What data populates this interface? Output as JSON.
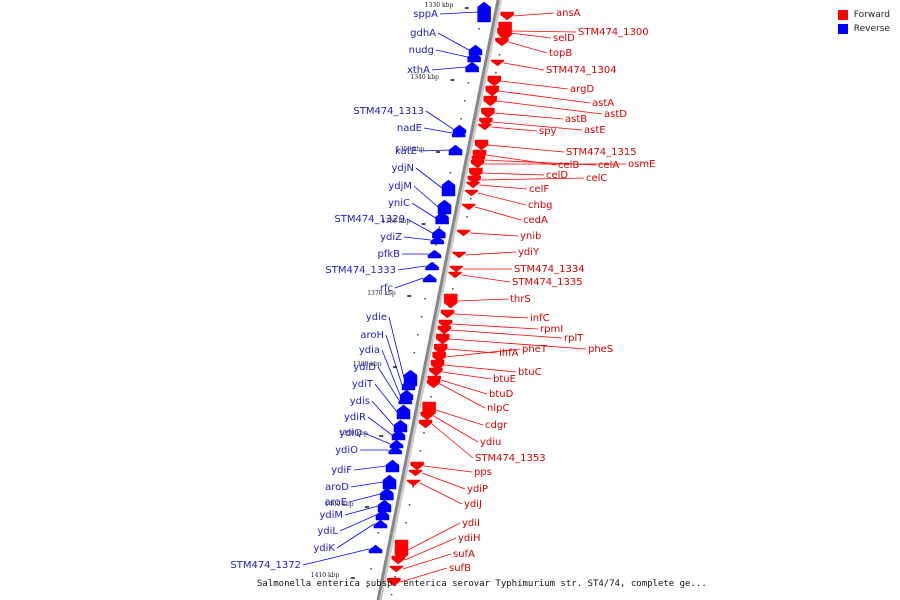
{
  "title": "Salmonella enterica subsp. enterica serovar Typhimurium str. ST4/74, complete ge...",
  "legend": [
    {
      "label": "Forward",
      "color": "#ff0000"
    },
    {
      "label": "Reverse",
      "color": "#0000ff"
    }
  ],
  "colors": {
    "forward": "#ff0000",
    "reverse": "#0000ff",
    "axis": "#888888"
  },
  "ticks": [
    "1330 kbp",
    "1340 kbp",
    "1350 kbp",
    "1360 kbp",
    "1370 kbp",
    "1380 kbp",
    "1390 kbp",
    "1400 kbp",
    "1410 kbp"
  ],
  "reverse_genes": [
    "sppA",
    "gdhA",
    "nudg",
    "xthA",
    "STM474_1313",
    "nadE",
    "katE",
    "ydjN",
    "ydjM",
    "yniC",
    "STM474_1329",
    "ydiZ",
    "pfkB",
    "STM474_1333",
    "rfc",
    "ydie",
    "aroH",
    "ydia",
    "ydiD",
    "ydiT",
    "ydis",
    "ydiR",
    "ydiQ",
    "ydiO",
    "ydiF",
    "aroD",
    "aroE",
    "ydiM",
    "ydiL",
    "ydiK",
    "STM474_1372"
  ],
  "forward_genes": [
    "ansA",
    "STM474_1300",
    "selD",
    "topB",
    "STM474_1304",
    "argD",
    "astA",
    "astD",
    "astB",
    "astE",
    "spy",
    "STM474_1315",
    "celB",
    "celA",
    "osmE",
    "celD",
    "celC",
    "celF",
    "chbg",
    "cedA",
    "ynib",
    "ydiY",
    "STM474_1334",
    "STM474_1335",
    "thrS",
    "infC",
    "rpmI",
    "rplT",
    "pheS",
    "ihfA",
    "pheT",
    "btuC",
    "btuE",
    "btuD",
    "nlpC",
    "cdgr",
    "ydiu",
    "STM474_1353",
    "pps",
    "ydiP",
    "ydiJ",
    "ydiI",
    "ydiH",
    "sufA",
    "sufB"
  ]
}
